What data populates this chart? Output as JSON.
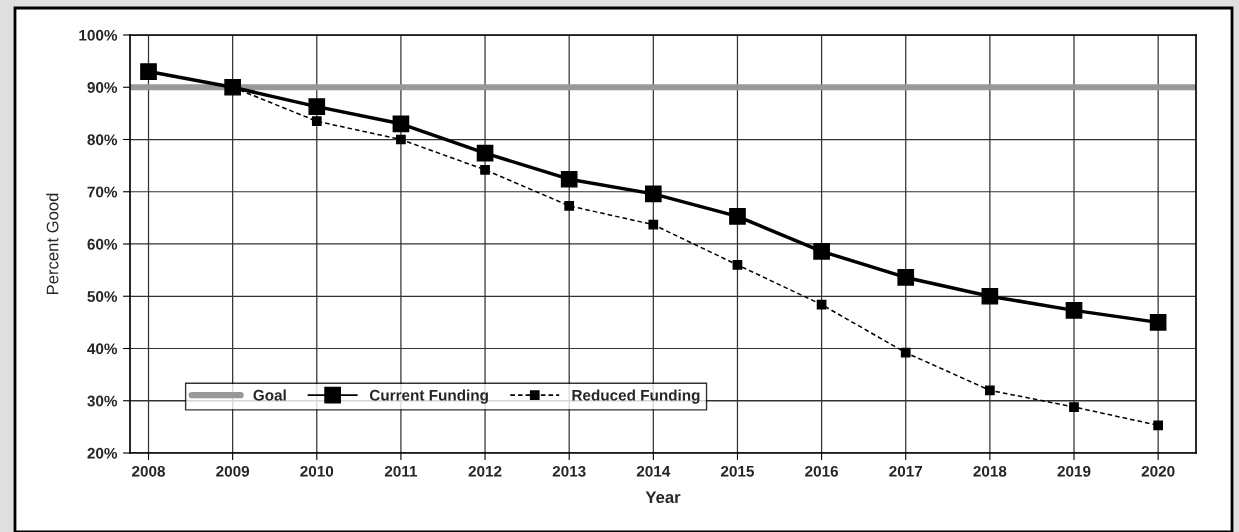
{
  "chart_data": {
    "type": "line",
    "xlabel": "Year",
    "ylabel": "Percent Good",
    "categories": [
      "2008",
      "2009",
      "2010",
      "2011",
      "2012",
      "2013",
      "2014",
      "2015",
      "2016",
      "2017",
      "2018",
      "2019",
      "2020"
    ],
    "series": [
      {
        "name": "Current Funding",
        "color": "#000000",
        "marker": "square",
        "line_style": "solid",
        "values": [
          93,
          90,
          86.3,
          83,
          77.4,
          72.4,
          69.6,
          65.3,
          58.6,
          53.6,
          50,
          47.3,
          45
        ]
      },
      {
        "name": "Reduced Funding",
        "color": "#000000",
        "marker": "square",
        "line_style": "dashed",
        "values": [
          null,
          90,
          83.5,
          80,
          74.2,
          67.3,
          63.7,
          56,
          48.4,
          39.2,
          32,
          28.8,
          25.3
        ]
      }
    ],
    "ref_lines": [
      {
        "axis": "y",
        "value": 90,
        "label": "Goal",
        "color": "#999999"
      }
    ],
    "ylim": [
      20,
      100
    ],
    "yticks": [
      {
        "value": 20,
        "label": "20%"
      },
      {
        "value": 30,
        "label": "30%"
      },
      {
        "value": 40,
        "label": "40%"
      },
      {
        "value": 50,
        "label": "50%"
      },
      {
        "value": 60,
        "label": "60%"
      },
      {
        "value": 70,
        "label": "70%"
      },
      {
        "value": 80,
        "label": "80%"
      },
      {
        "value": 90,
        "label": "90%"
      },
      {
        "value": 100,
        "label": "100%"
      }
    ],
    "grid": true,
    "legend": "bottom left"
  }
}
